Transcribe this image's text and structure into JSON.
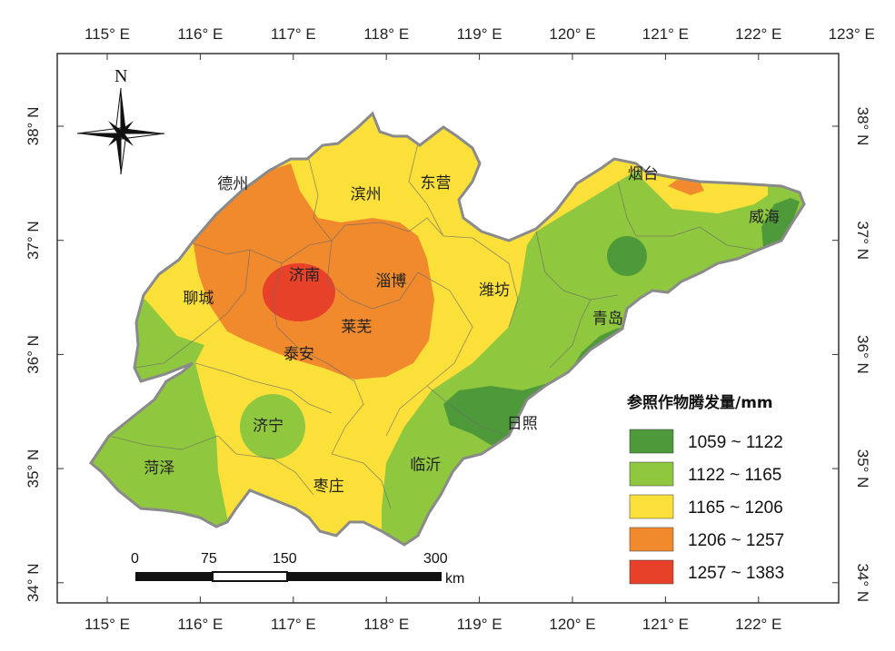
{
  "lon_ticks": [
    "115° E",
    "116° E",
    "117° E",
    "118° E",
    "119° E",
    "120° E",
    "121° E",
    "122° E",
    "123° E"
  ],
  "lon_ticks_bottom": [
    "115° E",
    "116° E",
    "117° E",
    "118° E",
    "119° E",
    "120° E",
    "121° E",
    "122° E"
  ],
  "lat_ticks": [
    "38° N",
    "37° N",
    "36° N",
    "35° N",
    "34° N"
  ],
  "north_label": "N",
  "cities": [
    {
      "name": "德州",
      "lon": 116.35,
      "lat": 37.45
    },
    {
      "name": "滨州",
      "lon": 117.78,
      "lat": 37.36
    },
    {
      "name": "东营",
      "lon": 118.53,
      "lat": 37.46
    },
    {
      "name": "烟台",
      "lon": 120.76,
      "lat": 37.54
    },
    {
      "name": "威海",
      "lon": 122.06,
      "lat": 37.16
    },
    {
      "name": "济南",
      "lon": 117.12,
      "lat": 36.65
    },
    {
      "name": "淄博",
      "lon": 118.05,
      "lat": 36.6
    },
    {
      "name": "聊城",
      "lon": 115.98,
      "lat": 36.45
    },
    {
      "name": "潍坊",
      "lon": 119.16,
      "lat": 36.52
    },
    {
      "name": "青岛",
      "lon": 120.38,
      "lat": 36.27
    },
    {
      "name": "莱芜",
      "lon": 117.68,
      "lat": 36.2
    },
    {
      "name": "泰安",
      "lon": 117.06,
      "lat": 35.96
    },
    {
      "name": "日照",
      "lon": 119.46,
      "lat": 35.35
    },
    {
      "name": "济宁",
      "lon": 116.73,
      "lat": 35.33
    },
    {
      "name": "菏泽",
      "lon": 115.56,
      "lat": 34.96
    },
    {
      "name": "临沂",
      "lon": 118.42,
      "lat": 34.99
    },
    {
      "name": "枣庄",
      "lon": 117.38,
      "lat": 34.8
    }
  ],
  "legend": {
    "title": "参照作物腾发量/mm",
    "classes": [
      {
        "label": "1059 ~ 1122",
        "color": "#4e9a3a"
      },
      {
        "label": "1122 ~ 1165",
        "color": "#8fc73e"
      },
      {
        "label": "1165 ~ 1206",
        "color": "#fbe03a"
      },
      {
        "label": "1206 ~ 1257",
        "color": "#f08a2c"
      },
      {
        "label": "1257 ~ 1383",
        "color": "#e8412a"
      }
    ]
  },
  "scale_bar": {
    "labels": [
      "0",
      "75",
      "150",
      "300"
    ],
    "unit": "km"
  }
}
